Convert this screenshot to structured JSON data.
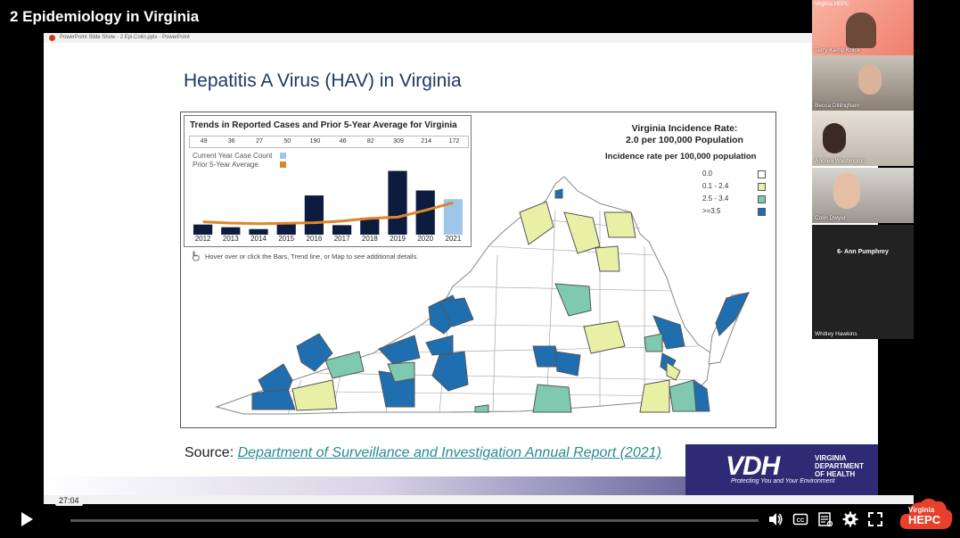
{
  "video": {
    "title": "2 Epidemiology in Virginia"
  },
  "ppt_bar": {
    "text": "PowerPoint Slide Show  -  2.Epi.Colin.pptx  -  PowerPoint"
  },
  "slide": {
    "title": "Hepatitis A Virus (HAV) in Virginia",
    "trend": {
      "title": "Trends in Reported Cases and Prior 5-Year Average for Virginia",
      "legend_current": "Current Year Case Count",
      "legend_prior": "Prior 5-Year Average",
      "hover_note": "Hover over or click the Bars, Trend line, or Map to see additional details."
    },
    "rate_header_line1": "Virginia Incidence Rate:",
    "rate_header_line2": "2.0 per 100,000 Population",
    "rate_subtitle": "Incidence rate per 100,000 population",
    "map_legend": [
      {
        "label": "0.0",
        "color": "#ffffff"
      },
      {
        "label": "0.1 - 2.4",
        "color": "#e8f0a6"
      },
      {
        "label": "2.5 - 3.4",
        "color": "#7fc9b0"
      },
      {
        "label": ">=3.5",
        "color": "#1f6fb0"
      }
    ],
    "source_label": "Source:",
    "source_link": "Department of Surveillance and Investigation Annual Report (2021)",
    "vdh": {
      "logo": "VDH",
      "line1": "VIRGINIA",
      "line2": "DEPARTMENT",
      "line3": "OF HEALTH",
      "tagline": "Protecting You and Your Environment"
    }
  },
  "chart_data": {
    "type": "bar",
    "title": "Trends in Reported Cases and Prior 5-Year Average for Virginia",
    "categories": [
      "2012",
      "2013",
      "2014",
      "2015",
      "2016",
      "2017",
      "2018",
      "2019",
      "2020",
      "2021"
    ],
    "series": [
      {
        "name": "Current Year Case Count",
        "values": [
          49,
          36,
          27,
          50,
          190,
          46,
          82,
          309,
          214,
          172
        ]
      }
    ],
    "trend_line_name": "Prior 5-Year Average",
    "ylim": [
      0,
      320
    ],
    "colors": {
      "past": "#0d1b3e",
      "current": "#9fc5e8",
      "trend": "#e0852b"
    }
  },
  "participants": [
    {
      "name": "Terry Kemp Knick",
      "header": "Virginia HEPC"
    },
    {
      "name": "Becca Dillingham"
    },
    {
      "name": "Andrea Washington"
    },
    {
      "name": "Colin Dwyer"
    },
    {
      "name": "6- Ann Pumphrey"
    },
    {
      "name": "Whitley Hawkins"
    }
  ],
  "player": {
    "time": "27:04",
    "progress": 0.0,
    "brand_line1": "Virginia",
    "brand_line2": "HEPC"
  },
  "colors": {
    "accent_teal": "#2a8a8f",
    "vdh_navy": "#2e2a73",
    "title_navy": "#1f3864",
    "brand_red": "#e8402a"
  }
}
